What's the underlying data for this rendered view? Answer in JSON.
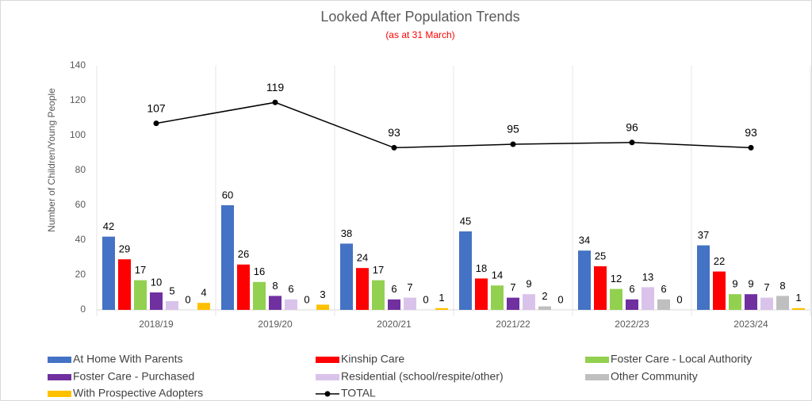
{
  "chart_data": {
    "type": "bar",
    "title": "Looked After Population Trends",
    "subtitle": "(as at 31 March)",
    "y_label": "Number of Children/Young People",
    "categories": [
      "2018/19",
      "2019/20",
      "2020/21",
      "2021/22",
      "2022/23",
      "2023/24"
    ],
    "series": [
      {
        "name": "At Home With Parents",
        "color": "#4472c4",
        "values": [
          42,
          60,
          38,
          45,
          34,
          37
        ]
      },
      {
        "name": "Kinship Care",
        "color": "#ff0000",
        "values": [
          29,
          26,
          24,
          18,
          25,
          22
        ]
      },
      {
        "name": "Foster Care - Local Authority",
        "color": "#92d050",
        "values": [
          17,
          16,
          17,
          14,
          12,
          9
        ]
      },
      {
        "name": "Foster Care - Purchased",
        "color": "#7030a0",
        "values": [
          10,
          8,
          6,
          7,
          6,
          9
        ]
      },
      {
        "name": "Residential (school/respite/other)",
        "color": "#d9c3ea",
        "values": [
          5,
          6,
          7,
          9,
          13,
          7
        ]
      },
      {
        "name": "Other Community",
        "color": "#bfbfbf",
        "values": [
          0,
          0,
          0,
          2,
          6,
          8
        ]
      },
      {
        "name": "With Prospective Adopters",
        "color": "#ffc000",
        "values": [
          4,
          3,
          1,
          0,
          0,
          1
        ]
      },
      {
        "name": "TOTAL",
        "color": "#000000",
        "type": "line",
        "values": [
          107,
          119,
          93,
          95,
          96,
          93
        ]
      }
    ],
    "ylim": [
      0,
      140
    ],
    "yticks": [
      0,
      20,
      40,
      60,
      80,
      100,
      120,
      140
    ],
    "grid": false
  }
}
